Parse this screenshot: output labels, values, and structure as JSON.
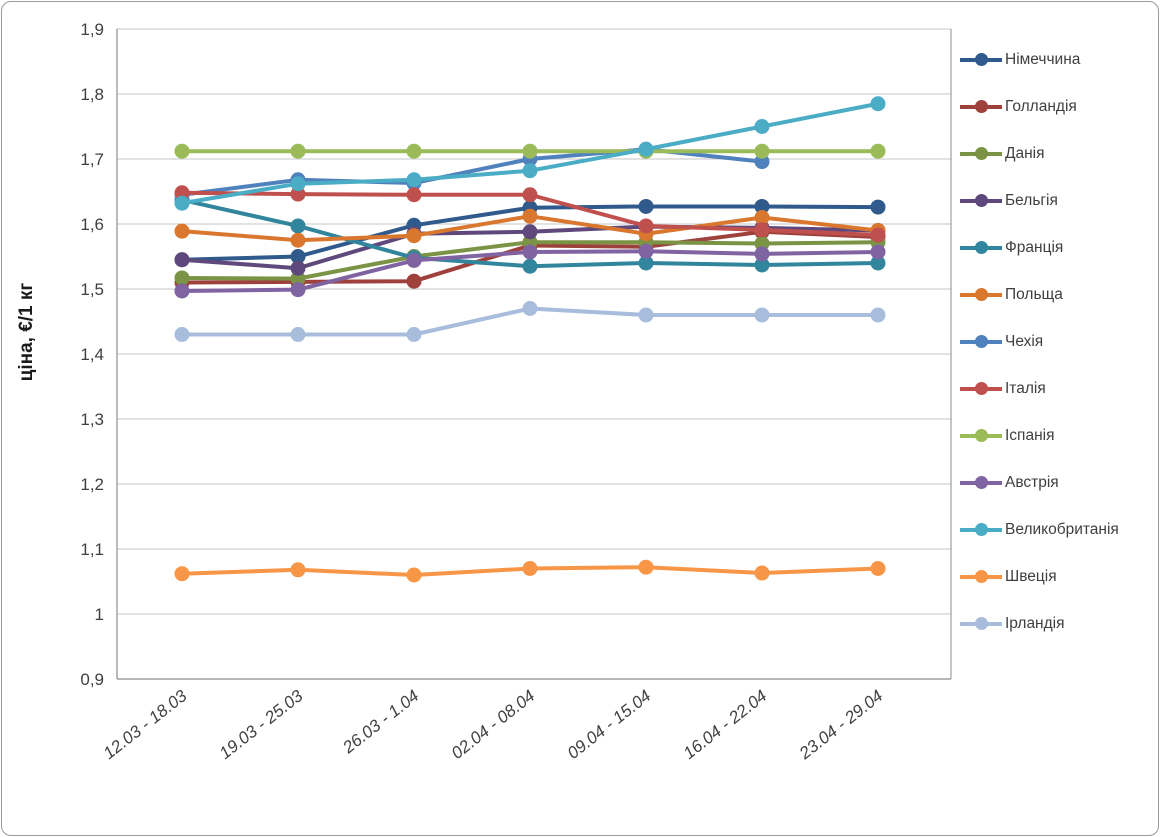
{
  "chart_data": {
    "type": "line",
    "title": "",
    "ylabel": "ціна, €/1 кг",
    "xlabel": "",
    "ylim": [
      0.9,
      1.9
    ],
    "grid": true,
    "legend_position": "right",
    "y_ticks": [
      {
        "label": "1,9",
        "value": 1.9
      },
      {
        "label": "1,8",
        "value": 1.8
      },
      {
        "label": "1,7",
        "value": 1.7
      },
      {
        "label": "1,6",
        "value": 1.6
      },
      {
        "label": "1,5",
        "value": 1.5
      },
      {
        "label": "1,4",
        "value": 1.4
      },
      {
        "label": "1,3",
        "value": 1.3
      },
      {
        "label": "1,2",
        "value": 1.2
      },
      {
        "label": "1,1",
        "value": 1.1
      },
      {
        "label": "1",
        "value": 1.0
      },
      {
        "label": "0,9",
        "value": 0.9
      }
    ],
    "categories": [
      "12.03 - 18.03",
      "19.03 - 25.03",
      "26.03 - 1.04",
      "02.04 - 08.04",
      "09.04 - 15.04",
      "16.04 - 22.04",
      "23.04 - 29.04"
    ],
    "series": [
      {
        "name": "Німеччина",
        "color": "#2F5A8B",
        "values": [
          1.545,
          1.55,
          1.598,
          1.625,
          1.627,
          1.627,
          1.626
        ]
      },
      {
        "name": "Голландія",
        "color": "#9E413C",
        "values": [
          1.51,
          1.511,
          1.512,
          1.567,
          1.565,
          1.588,
          1.58
        ]
      },
      {
        "name": "Данія",
        "color": "#7A9345",
        "values": [
          1.517,
          1.516,
          1.55,
          1.572,
          1.572,
          1.57,
          1.572
        ]
      },
      {
        "name": "Бельгія",
        "color": "#5F497C",
        "values": [
          1.545,
          1.532,
          1.585,
          1.588,
          1.596,
          1.594,
          1.59
        ]
      },
      {
        "name": "Франція",
        "color": "#31859C",
        "values": [
          1.637,
          1.597,
          1.548,
          1.535,
          1.54,
          1.537,
          1.54
        ]
      },
      {
        "name": "Польща",
        "color": "#D9772E",
        "values": [
          1.589,
          1.575,
          1.582,
          1.612,
          1.585,
          1.61,
          1.59
        ]
      },
      {
        "name": "Чехія",
        "color": "#4F81BD",
        "values": [
          1.645,
          1.668,
          1.663,
          1.7,
          1.715,
          1.696,
          null
        ]
      },
      {
        "name": "Італія",
        "color": "#C0504D",
        "values": [
          1.648,
          1.646,
          1.645,
          1.645,
          1.597,
          1.591,
          1.583
        ]
      },
      {
        "name": "Іспанія",
        "color": "#9BBB59",
        "values": [
          1.712,
          1.712,
          1.712,
          1.712,
          1.712,
          1.712,
          1.712
        ]
      },
      {
        "name": "Австрія",
        "color": "#8064A2",
        "values": [
          1.497,
          1.499,
          1.544,
          1.557,
          1.558,
          1.554,
          1.557
        ]
      },
      {
        "name": "Великобританія",
        "color": "#4BACC6",
        "values": [
          1.632,
          1.662,
          1.668,
          1.682,
          1.715,
          1.75,
          1.785
        ]
      },
      {
        "name": "Швеція",
        "color": "#F79646",
        "values": [
          1.062,
          1.068,
          1.06,
          1.07,
          1.072,
          1.063,
          1.07
        ]
      },
      {
        "name": "Ірландія",
        "color": "#A8BCDC",
        "values": [
          1.43,
          1.43,
          1.43,
          1.47,
          1.46,
          1.46,
          1.46
        ]
      }
    ]
  }
}
